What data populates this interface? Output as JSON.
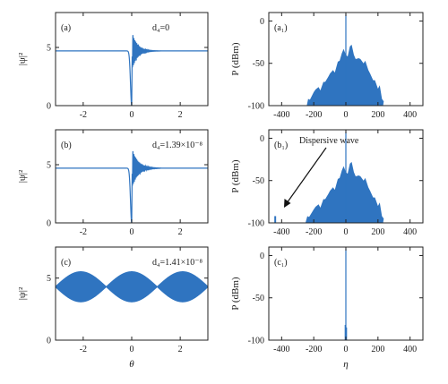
{
  "colors": {
    "series": "#2f74c0",
    "axis": "#222222",
    "background": "#ffffff"
  },
  "chart_data": [
    {
      "id": "a",
      "type": "line",
      "panel_label": "(a)",
      "annotation": "d₄=0",
      "ylabel": "|ψ|²",
      "xlabel": "",
      "xlim": [
        -3.14,
        3.14
      ],
      "ylim": [
        0,
        8
      ],
      "xticks": [
        -2,
        0,
        2
      ],
      "xtick_labels": [
        "-2",
        "0",
        "2"
      ],
      "yticks": [
        0,
        5
      ],
      "ytick_labels": [
        "0",
        "5"
      ],
      "grid": false,
      "legend": "none",
      "series": [
        {
          "kind": "soliton",
          "background_level": 4.7,
          "dip_position": 0.0,
          "dip_min": 0.0,
          "peak_value": 6.0,
          "ringing_decay": 0.22
        }
      ]
    },
    {
      "id": "a1",
      "type": "area",
      "panel_label": "(a₁)",
      "annotation": "",
      "ylabel": "P (dBm)",
      "xlabel": "",
      "xlim": [
        -480,
        480
      ],
      "ylim": [
        -100,
        10
      ],
      "xticks": [
        -400,
        -200,
        0,
        200,
        400
      ],
      "xtick_labels": [
        "-400",
        "-200",
        "0",
        "200",
        "400"
      ],
      "yticks": [
        -100,
        -50,
        0
      ],
      "ytick_labels": [
        "-100",
        "-50",
        "0"
      ],
      "grid": false,
      "legend": "none",
      "series": [
        {
          "kind": "spectrum",
          "x": [
            -260,
            -235,
            -200,
            -170,
            -140,
            -110,
            -80,
            -50,
            -25,
            0,
            25,
            50,
            80,
            110,
            140,
            170,
            200,
            225,
            232
          ],
          "y": [
            -100,
            -92,
            -84,
            -78,
            -72,
            -66,
            -58,
            -48,
            -38,
            -40,
            -30,
            -40,
            -44,
            -50,
            -58,
            -70,
            -80,
            -92,
            -100
          ],
          "central_line": {
            "x": 0,
            "y": 8
          }
        }
      ]
    },
    {
      "id": "b",
      "type": "line",
      "panel_label": "(b)",
      "annotation": "d₄=1.39×10⁻⁸",
      "ylabel": "|ψ|²",
      "xlabel": "",
      "xlim": [
        -3.14,
        3.14
      ],
      "ylim": [
        0,
        8
      ],
      "xticks": [
        -2,
        0,
        2
      ],
      "xtick_labels": [
        "-2",
        "0",
        "2"
      ],
      "yticks": [
        0,
        5
      ],
      "ytick_labels": [
        "0",
        "5"
      ],
      "grid": false,
      "legend": "none",
      "series": [
        {
          "kind": "soliton",
          "background_level": 4.7,
          "dip_position": 0.0,
          "dip_min": 0.0,
          "peak_value": 6.1,
          "ringing_decay": 0.25
        }
      ]
    },
    {
      "id": "b1",
      "type": "area",
      "panel_label": "(b₁)",
      "annotation": "Dispersive wave",
      "ylabel": "P (dBm)",
      "xlabel": "",
      "xlim": [
        -480,
        480
      ],
      "ylim": [
        -100,
        10
      ],
      "xticks": [
        -400,
        -200,
        0,
        200,
        400
      ],
      "xtick_labels": [
        "-400",
        "-200",
        "0",
        "200",
        "400"
      ],
      "yticks": [
        -100,
        -50,
        0
      ],
      "ytick_labels": [
        "-100",
        "-50",
        "0"
      ],
      "grid": false,
      "legend": "none",
      "series": [
        {
          "kind": "spectrum",
          "x": [
            -270,
            -240,
            -200,
            -170,
            -140,
            -110,
            -80,
            -50,
            -25,
            0,
            25,
            50,
            80,
            110,
            140,
            170,
            200,
            225,
            232
          ],
          "y": [
            -100,
            -92,
            -84,
            -78,
            -72,
            -66,
            -58,
            -48,
            -38,
            -40,
            -30,
            -40,
            -44,
            -50,
            -58,
            -70,
            -80,
            -92,
            -100
          ],
          "central_line": {
            "x": 0,
            "y": 8
          },
          "dispersive_wave": {
            "x": -440,
            "y": -92
          }
        }
      ]
    },
    {
      "id": "c",
      "type": "area",
      "panel_label": "(c)",
      "annotation": "d₄=1.41×10⁻⁸",
      "ylabel": "|ψ|²",
      "xlabel": "θ",
      "xlim": [
        -3.14,
        3.14
      ],
      "ylim": [
        0,
        7.5
      ],
      "xticks": [
        -2,
        0,
        2
      ],
      "xtick_labels": [
        "-2",
        "0",
        "2"
      ],
      "yticks": [
        0,
        5
      ],
      "ytick_labels": [
        "0",
        "5"
      ],
      "grid": false,
      "legend": "none",
      "series": [
        {
          "kind": "envelope",
          "center": 4.3,
          "amplitude_max": 1.25,
          "amplitude_min": 0.05,
          "node_positions": [
            -1.05,
            1.05
          ]
        }
      ]
    },
    {
      "id": "c1",
      "type": "line",
      "panel_label": "(c₁)",
      "annotation": "",
      "ylabel": "P (dBm)",
      "xlabel": "η",
      "xlim": [
        -480,
        480
      ],
      "ylim": [
        -100,
        10
      ],
      "xticks": [
        -400,
        -200,
        0,
        200,
        400
      ],
      "xtick_labels": [
        "-400",
        "-200",
        "0",
        "200",
        "400"
      ],
      "yticks": [
        -100,
        -50,
        0
      ],
      "ytick_labels": [
        "-100",
        "-50",
        "0"
      ],
      "grid": false,
      "legend": "none",
      "series": [
        {
          "kind": "lines",
          "lines": [
            {
              "x": -4,
              "y": -82
            },
            {
              "x": 0,
              "y": 8
            },
            {
              "x": 4,
              "y": -85
            }
          ]
        }
      ]
    }
  ]
}
